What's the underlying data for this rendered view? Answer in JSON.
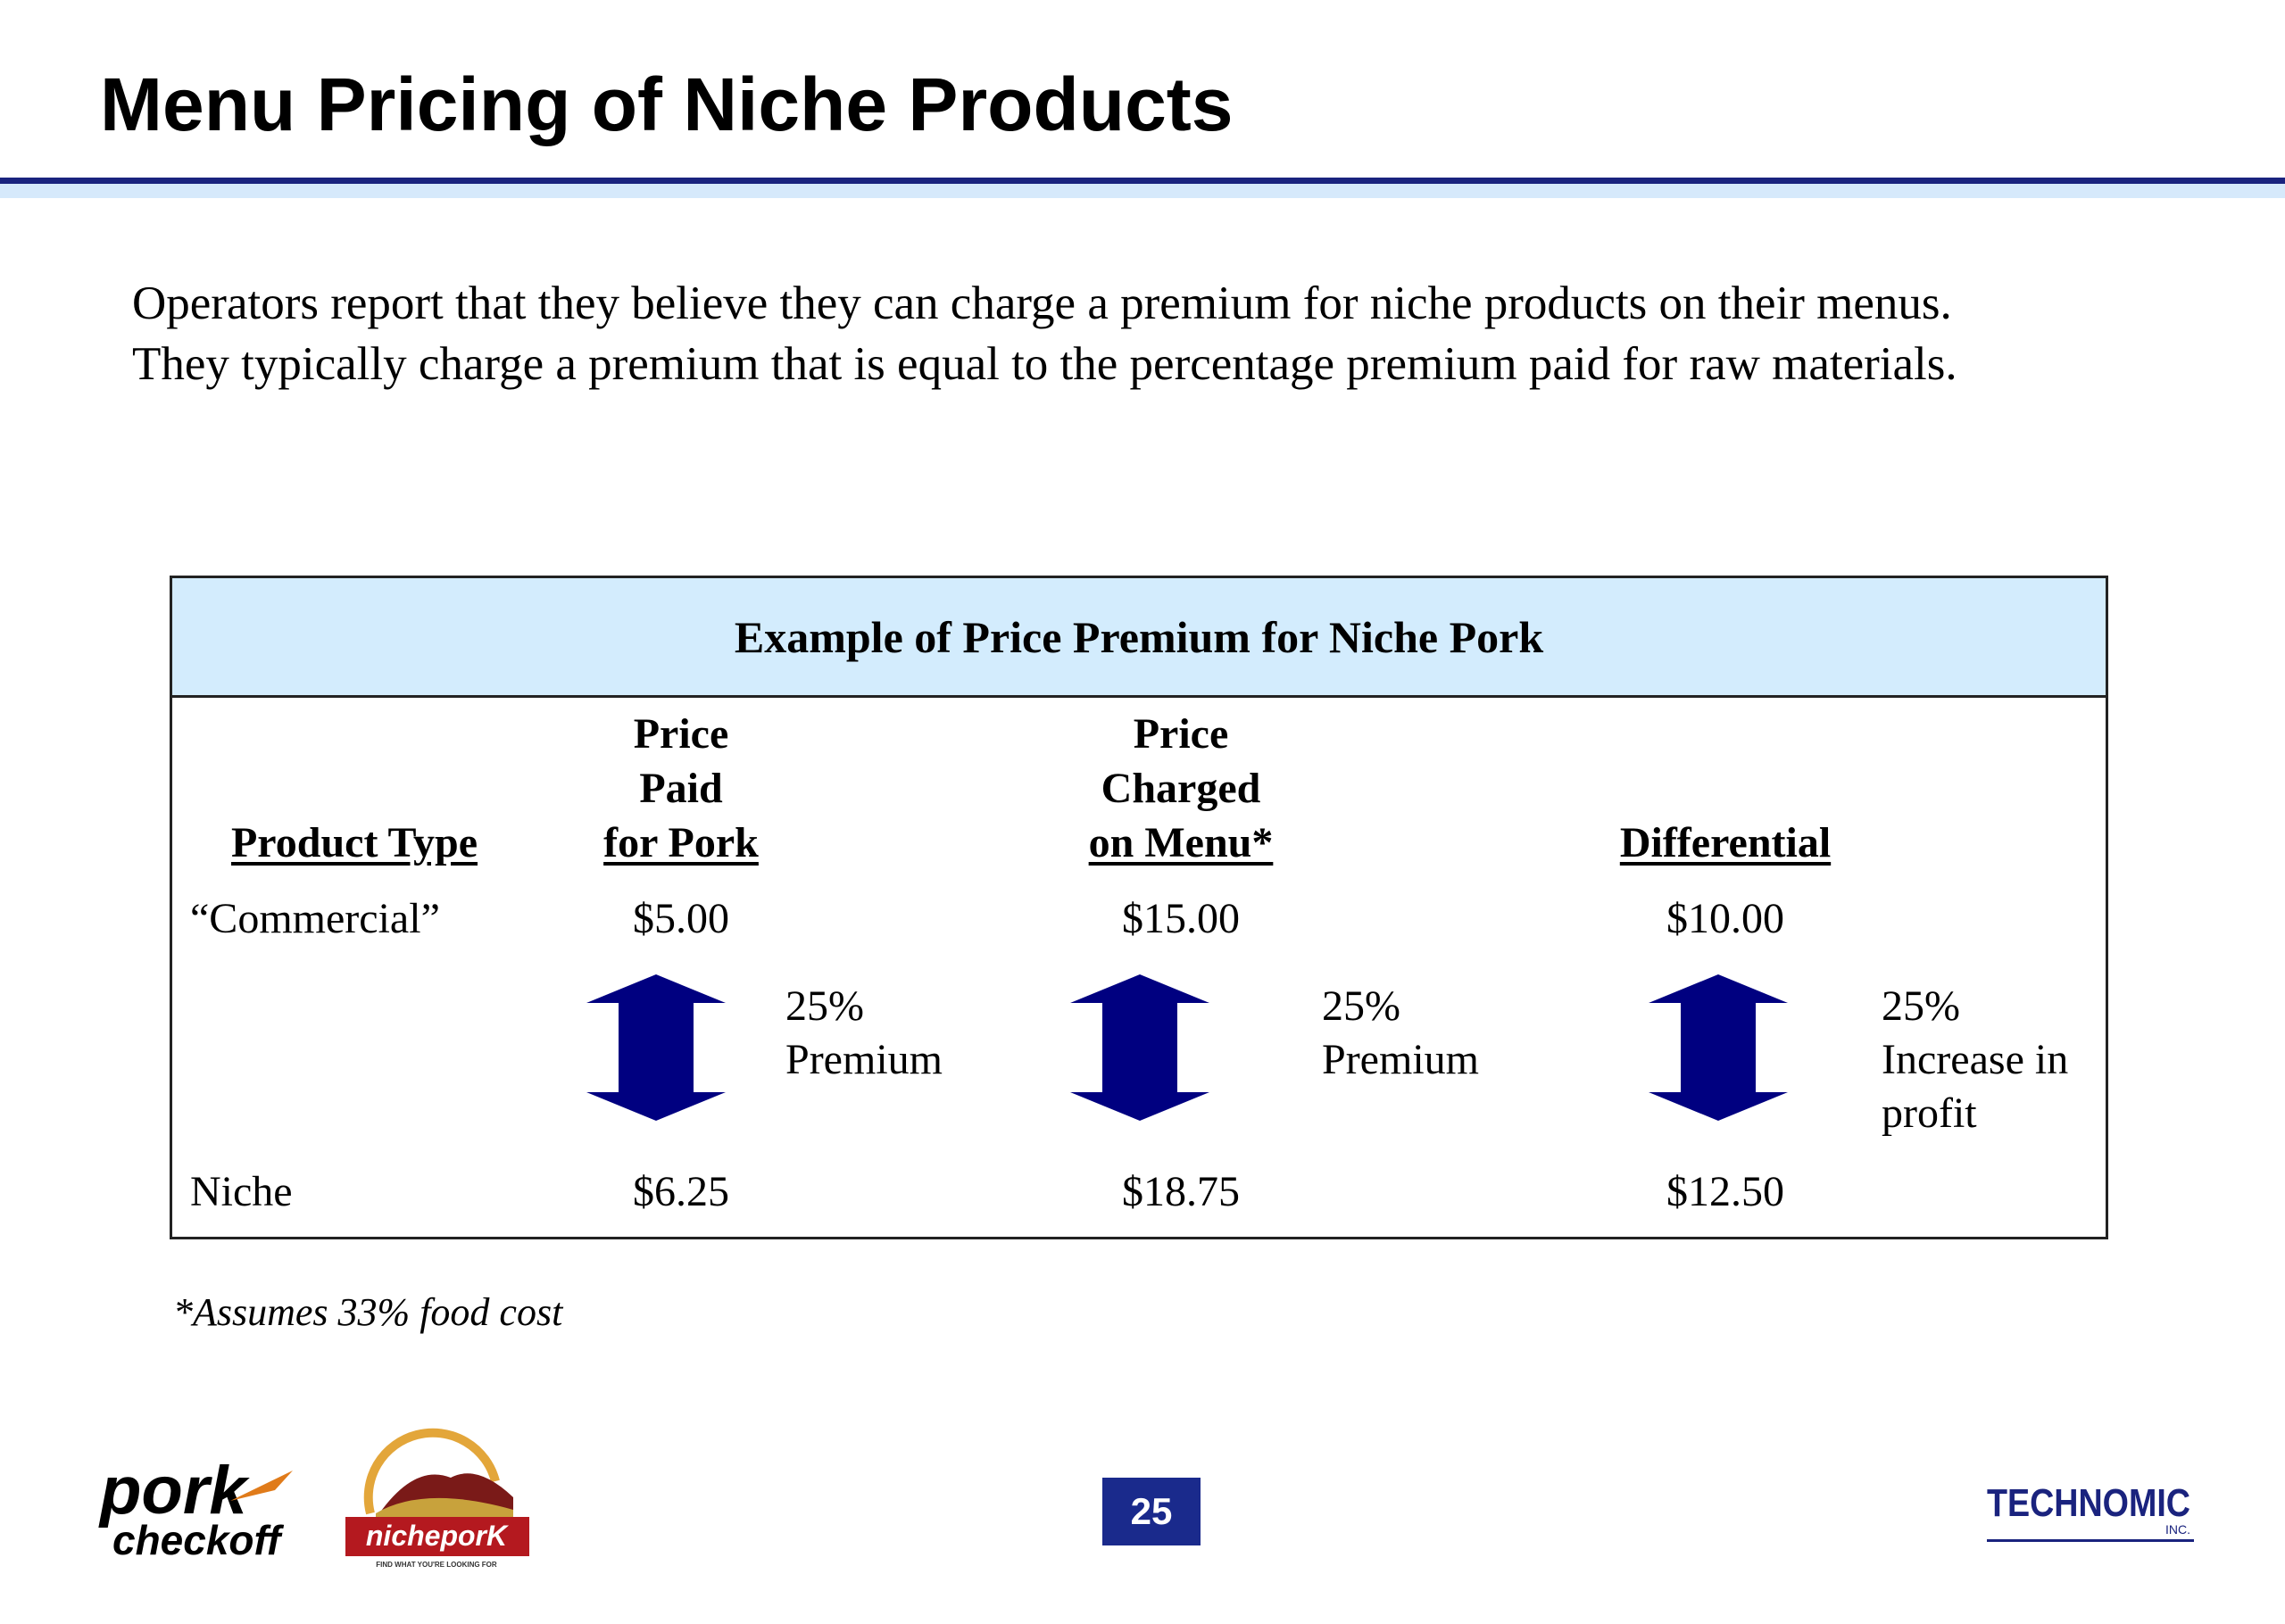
{
  "header": {
    "title": "Menu Pricing of Niche Products"
  },
  "intro": {
    "line1": "Operators report that they believe they can charge a premium for niche products on their menus.",
    "line2": "They typically charge a premium that is equal to the percentage premium paid for raw materials."
  },
  "table": {
    "title": "Example of Price Premium for Niche Pork",
    "columns": {
      "product_type": "Product Type",
      "price_paid": [
        "Price",
        "Paid",
        "for Pork"
      ],
      "price_charged": [
        "Price",
        "Charged",
        "on Menu*"
      ],
      "differential": "Differential"
    },
    "rows": [
      {
        "type": "“Commercial”",
        "paid": "$5.00",
        "charged": "$15.00",
        "diff": "$10.00"
      },
      {
        "type": "Niche",
        "paid": "$6.25",
        "charged": "$18.75",
        "diff": "$12.50"
      }
    ],
    "premium_labels": {
      "paid": [
        "25%",
        "Premium"
      ],
      "charged": [
        "25%",
        "Premium"
      ],
      "diff": [
        "25%",
        "Increase in",
        "profit"
      ]
    },
    "arrow_color": "#000080",
    "header_bg": "#d3ecfd"
  },
  "footnote": "*Assumes 33% food cost",
  "footer": {
    "page_number": "25",
    "logos": {
      "pork_top": "pork",
      "pork_bottom": "checkoff",
      "niche": "nicheporK",
      "niche_tagline": "FIND WHAT YOU'RE LOOKING FOR",
      "technomic": "TECHNOMIC",
      "technomic_sub": "INC."
    }
  }
}
